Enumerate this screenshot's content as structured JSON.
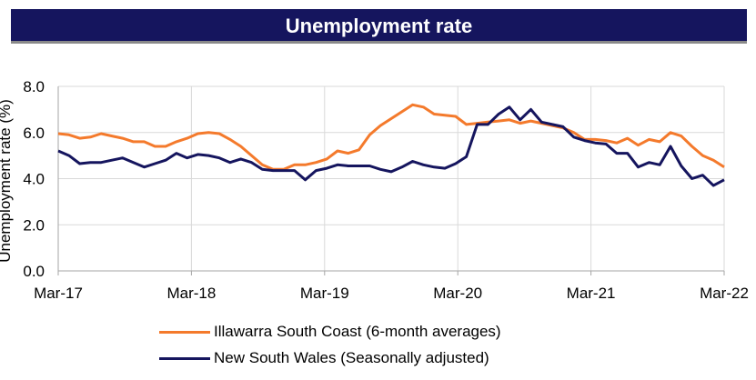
{
  "title": "Unemployment rate",
  "colors": {
    "title_bg": "#15155e",
    "grid": "#d9d9d9",
    "axis": "#a6a6a6"
  },
  "chart_data": {
    "type": "line",
    "title": "Unemployment rate",
    "ylabel": "Unemployment rate (%)",
    "xlabel": "",
    "ylim": [
      0,
      8
    ],
    "yticks": [
      "0.0",
      "2.0",
      "4.0",
      "6.0",
      "8.0"
    ],
    "x_tick_labels": [
      "Mar-17",
      "Mar-18",
      "Mar-19",
      "Mar-20",
      "Mar-21",
      "Mar-22"
    ],
    "x_range_months": [
      "2017-03",
      "2022-03"
    ],
    "grid": true,
    "legend_position": "bottom",
    "series": [
      {
        "name": "Illawarra South Coast (6-month averages)",
        "color": "#f47a2c",
        "values": [
          5.95,
          5.9,
          5.75,
          5.8,
          5.95,
          5.85,
          5.75,
          5.6,
          5.6,
          5.4,
          5.4,
          5.6,
          5.75,
          5.95,
          6.0,
          5.95,
          5.7,
          5.4,
          5.0,
          4.6,
          4.4,
          4.4,
          4.6,
          4.6,
          4.7,
          4.85,
          5.2,
          5.1,
          5.25,
          5.9,
          6.3,
          6.6,
          6.9,
          7.2,
          7.1,
          6.8,
          6.75,
          6.7,
          6.35,
          6.4,
          6.45,
          6.5,
          6.55,
          6.4,
          6.5,
          6.4,
          6.3,
          6.2,
          6.0,
          5.7,
          5.7,
          5.65,
          5.55,
          5.75,
          5.45,
          5.7,
          5.6,
          6.0,
          5.85,
          5.4,
          5.0,
          4.8,
          4.5
        ]
      },
      {
        "name": "New South Wales (Seasonally adjusted)",
        "color": "#15155e",
        "values": [
          5.2,
          5.0,
          4.65,
          4.7,
          4.7,
          4.8,
          4.9,
          4.7,
          4.5,
          4.65,
          4.8,
          5.1,
          4.9,
          5.05,
          5.0,
          4.9,
          4.7,
          4.85,
          4.7,
          4.4,
          4.35,
          4.35,
          4.35,
          3.95,
          4.35,
          4.45,
          4.6,
          4.55,
          4.55,
          4.55,
          4.4,
          4.3,
          4.5,
          4.75,
          4.6,
          4.5,
          4.45,
          4.65,
          4.95,
          6.35,
          6.35,
          6.8,
          7.1,
          6.55,
          7.0,
          6.45,
          6.35,
          6.25,
          5.8,
          5.65,
          5.55,
          5.5,
          5.1,
          5.1,
          4.5,
          4.7,
          4.6,
          5.4,
          4.55,
          4.0,
          4.15,
          3.7,
          3.95
        ]
      }
    ]
  }
}
